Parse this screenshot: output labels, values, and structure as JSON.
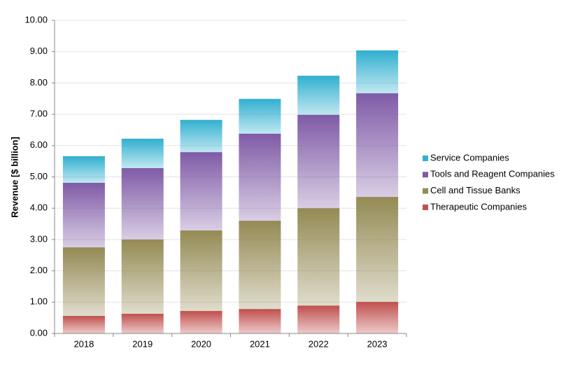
{
  "chart_data": {
    "type": "stacked_bar",
    "y_label": "Revenue [$ billion]",
    "categories": [
      "2018",
      "2019",
      "2020",
      "2021",
      "2022",
      "2023"
    ],
    "series": [
      {
        "name": "Therapeutic Companies",
        "color": "#c0504d",
        "values": [
          0.56,
          0.63,
          0.72,
          0.78,
          0.89,
          1.01
        ]
      },
      {
        "name": "Cell and Tissue Banks",
        "color": "#948a54",
        "values": [
          2.19,
          2.37,
          2.57,
          2.82,
          3.11,
          3.35
        ]
      },
      {
        "name": "Tools and Reagent Companies",
        "color": "#7f5ba6",
        "values": [
          2.06,
          2.28,
          2.5,
          2.78,
          2.98,
          3.31
        ]
      },
      {
        "name": "Service Companies",
        "color": "#31b0d0",
        "values": [
          0.85,
          0.94,
          1.03,
          1.11,
          1.25,
          1.37
        ]
      }
    ],
    "ylim": [
      0,
      10
    ],
    "yticks": [
      {
        "value": 0,
        "label": "0.00"
      },
      {
        "value": 1,
        "label": "1.00"
      },
      {
        "value": 2,
        "label": "2.00"
      },
      {
        "value": 3,
        "label": "3.00"
      },
      {
        "value": 4,
        "label": "4.00"
      },
      {
        "value": 5,
        "label": "5.00"
      },
      {
        "value": 6,
        "label": "6.00"
      },
      {
        "value": 7,
        "label": "7.00"
      },
      {
        "value": 8,
        "label": "8.00"
      },
      {
        "value": 9,
        "label": "9.00"
      },
      {
        "value": 10,
        "label": "10.00"
      }
    ],
    "grid": true,
    "legend": "right"
  }
}
